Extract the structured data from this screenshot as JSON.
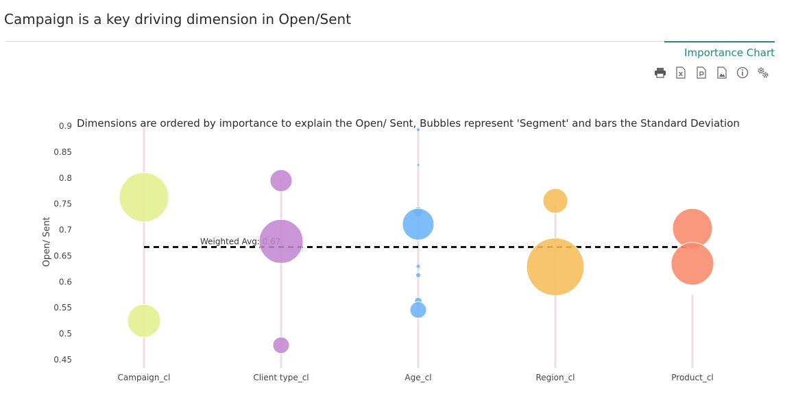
{
  "page": {
    "title": "Campaign is a key driving dimension in Open/Sent",
    "tab_label": "Importance Chart"
  },
  "toolbar": {
    "icons": [
      "printer-icon",
      "excel-export-icon",
      "pdf-export-icon",
      "image-export-icon",
      "info-icon",
      "settings-icon"
    ]
  },
  "chart_data": {
    "type": "scatter",
    "subtitle": "Dimensions are ordered by importance to explain the Open/ Sent, Bubbles represent 'Segment' and bars the Standard Deviation",
    "ylabel": "Open/ Sent",
    "xlabel": "",
    "categories": [
      "Campaign_cl",
      "Client type_cl",
      "Age_cl",
      "Region_cl",
      "Product_cl"
    ],
    "ylim": [
      0.45,
      0.9
    ],
    "yticks": [
      "0.9",
      "0.85",
      "0.8",
      "0.75",
      "0.7",
      "0.65",
      "0.6",
      "0.55",
      "0.5",
      "0.45"
    ],
    "colors": [
      "#e2ef8e",
      "#c487d2",
      "#6cb4f8",
      "#f6bd59",
      "#f98a6c"
    ],
    "stddev_bar_color": "#f0dde2",
    "reference_line": {
      "label": "Weighted Avg: 0.67",
      "value": 0.667
    },
    "stddev_bars": [
      {
        "category": "Campaign_cl",
        "low": 0.43,
        "high": 0.9
      },
      {
        "category": "Client type_cl",
        "low": 0.43,
        "high": 0.8
      },
      {
        "category": "Age_cl",
        "low": 0.43,
        "high": 0.9
      },
      {
        "category": "Region_cl",
        "low": 0.43,
        "high": 0.75
      },
      {
        "category": "Product_cl",
        "low": 0.43,
        "high": 0.575
      }
    ],
    "series": [
      {
        "category": "Campaign_cl",
        "points": [
          {
            "y": 0.763,
            "size": 36
          },
          {
            "y": 0.525,
            "size": 24
          }
        ]
      },
      {
        "category": "Client type_cl",
        "points": [
          {
            "y": 0.795,
            "size": 16
          },
          {
            "y": 0.678,
            "size": 32
          },
          {
            "y": 0.478,
            "size": 12
          }
        ]
      },
      {
        "category": "Age_cl",
        "points": [
          {
            "y": 0.893,
            "size": 2
          },
          {
            "y": 0.825,
            "size": 1.5
          },
          {
            "y": 0.735,
            "size": 7
          },
          {
            "y": 0.711,
            "size": 23
          },
          {
            "y": 0.63,
            "size": 2.5
          },
          {
            "y": 0.613,
            "size": 3
          },
          {
            "y": 0.563,
            "size": 5.5
          },
          {
            "y": 0.546,
            "size": 12
          }
        ]
      },
      {
        "category": "Region_cl",
        "points": [
          {
            "y": 0.756,
            "size": 18
          },
          {
            "y": 0.629,
            "size": 42
          }
        ]
      },
      {
        "category": "Product_cl",
        "points": [
          {
            "y": 0.703,
            "size": 29
          },
          {
            "y": 0.635,
            "size": 31
          }
        ]
      }
    ]
  }
}
